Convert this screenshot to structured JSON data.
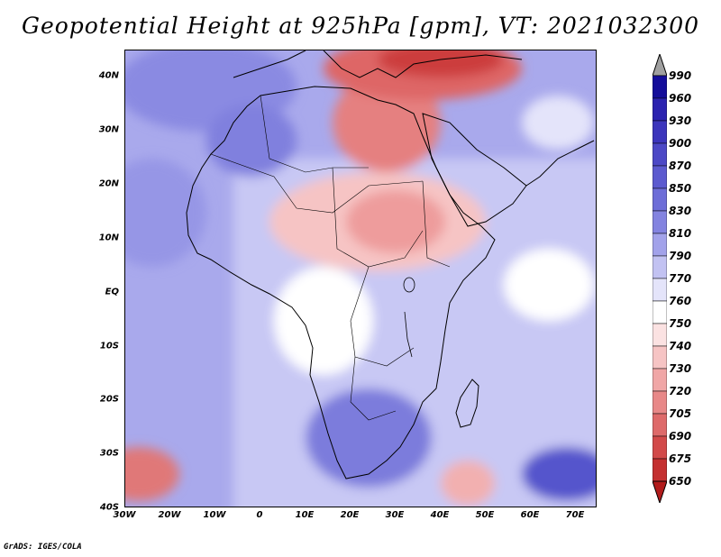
{
  "title": "Geopotential Height at 925hPa [gpm], VT: 2021032300",
  "footer": "GrADS: IGES/COLA",
  "map": {
    "lon_range": [
      -30,
      75
    ],
    "lat_range": [
      -40,
      45
    ],
    "y_ticks": [
      "40N",
      "30N",
      "20N",
      "10N",
      "EQ",
      "10S",
      "20S",
      "30S",
      "40S"
    ],
    "x_ticks": [
      "30W",
      "20W",
      "10W",
      "0",
      "10E",
      "20E",
      "30E",
      "40E",
      "50E",
      "60E",
      "70E"
    ]
  },
  "colorbar": {
    "levels": [
      "990",
      "960",
      "930",
      "900",
      "870",
      "850",
      "830",
      "810",
      "790",
      "770",
      "760",
      "750",
      "740",
      "730",
      "720",
      "705",
      "690",
      "675",
      "650"
    ],
    "colors": [
      "#a0a0a0",
      "#140d9a",
      "#2b22b0",
      "#3c35bc",
      "#4c48c6",
      "#5c5acf",
      "#6d6dd8",
      "#8383e0",
      "#a2a2ea",
      "#c2c2f2",
      "#e4e4fa",
      "#ffffff",
      "#fbe2e2",
      "#f6c4c4",
      "#f0a6a6",
      "#e88888",
      "#de6a6a",
      "#d24a4a",
      "#c43030",
      "#b21c1c"
    ]
  }
}
